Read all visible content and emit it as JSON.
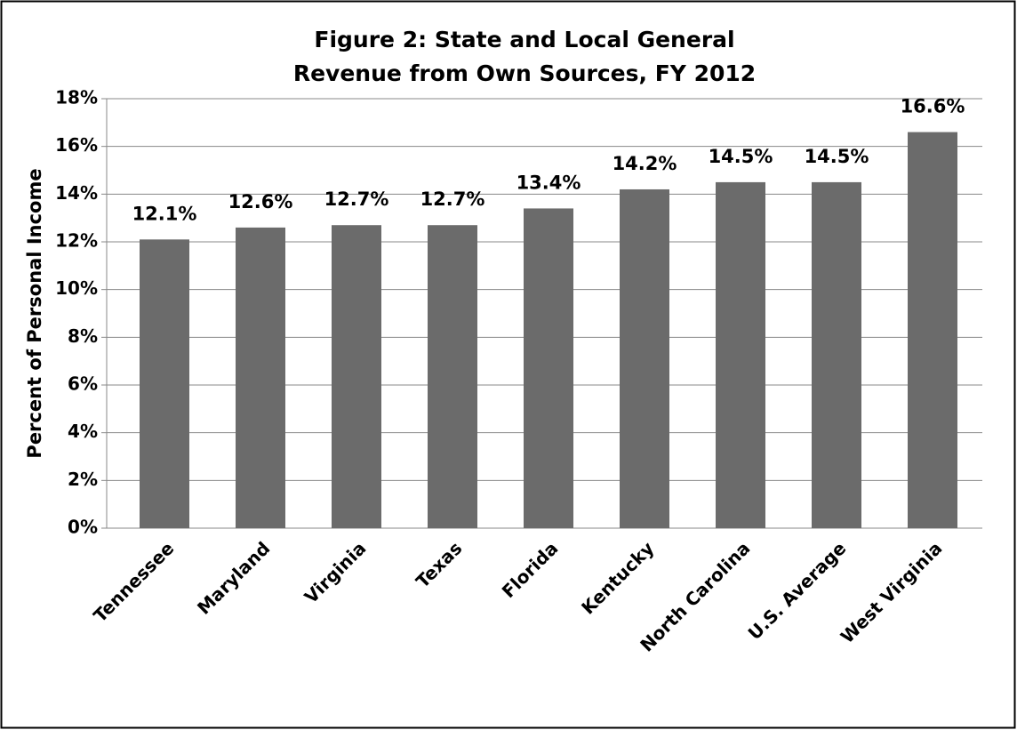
{
  "chart_data": {
    "type": "bar",
    "title": "Figure 2: State and Local General Revenue from Own Sources, FY 2012",
    "y_label": "Percent of Personal Income",
    "categories": [
      "Tennessee",
      "Maryland",
      "Virginia",
      "Texas",
      "Florida",
      "Kentucky",
      "North Carolina",
      "U.S. Average",
      "West Virginia"
    ],
    "values": [
      12.1,
      12.6,
      12.7,
      12.7,
      13.4,
      14.2,
      14.5,
      14.5,
      16.6
    ],
    "value_labels": [
      "12.1%",
      "12.6%",
      "12.7%",
      "12.7%",
      "13.4%",
      "14.2%",
      "14.5%",
      "14.5%",
      "16.6%"
    ],
    "color": "#6b6b6b",
    "ylim": [
      0,
      18
    ],
    "yticks": [
      {
        "value": 0,
        "label": "0%"
      },
      {
        "value": 2,
        "label": "2%"
      },
      {
        "value": 4,
        "label": "4%"
      },
      {
        "value": 6,
        "label": "6%"
      },
      {
        "value": 8,
        "label": "8%"
      },
      {
        "value": 10,
        "label": "10%"
      },
      {
        "value": 12,
        "label": "12%"
      },
      {
        "value": 14,
        "label": "14%"
      },
      {
        "value": 16,
        "label": "16%"
      },
      {
        "value": 18,
        "label": "18%"
      }
    ],
    "grid": true
  }
}
